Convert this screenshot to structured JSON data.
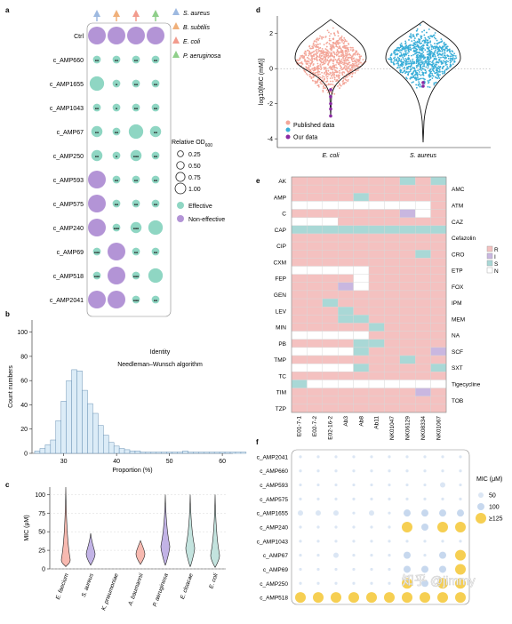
{
  "panel_labels": {
    "a": "a",
    "b": "b",
    "c": "c",
    "d": "d",
    "e": "e",
    "f": "f"
  },
  "colors": {
    "effective": "#8fd6c3",
    "noneffective": "#b394d6",
    "published": "#f3a699",
    "our": "#8b2aa3",
    "saureus": "#3aaed8",
    "R": "#f4c1c0",
    "I": "#c9b7e0",
    "S": "#a9d8d6",
    "N": "#ffffff",
    "mic50": "#dbe6f4",
    "mic100": "#c7d8ee",
    "mic125": "#f6cf52",
    "hist": "#dcecf7",
    "hist_edge": "#6b93b6",
    "tri_saureus": "#9db9e0",
    "tri_bsubtilis": "#f0b07a",
    "tri_ecoli": "#f29b8d",
    "tri_paeruginosa": "#8fcf8a"
  },
  "watermark": "知乎 @jimmy",
  "chart_data": [
    {
      "panel": "a",
      "type": "scatter",
      "rows": [
        "Ctrl",
        "c_AMP660",
        "c_AMP1655",
        "c_AMP1043",
        "c_AMP67",
        "c_AMP250",
        "c_AMP593",
        "c_AMP575",
        "c_AMP240",
        "c_AMP69",
        "c_AMP518",
        "c_AMP2041"
      ],
      "columns": [
        "S. aureus",
        "B. subtilis",
        "E. coli",
        "P. aeruginosa"
      ],
      "od": [
        [
          1,
          1,
          1,
          1
        ],
        [
          0.25,
          0.25,
          0.25,
          0.25
        ],
        [
          0.75,
          0.25,
          0.25,
          0.25
        ],
        [
          0.25,
          0.25,
          0.25,
          0.25
        ],
        [
          0.5,
          0.25,
          0.75,
          0.5
        ],
        [
          0.5,
          0.25,
          0.5,
          0.25
        ],
        [
          1,
          0.25,
          0.25,
          0.25
        ],
        [
          1,
          0.25,
          0.25,
          0.25
        ],
        [
          1,
          0.25,
          0.5,
          0.75
        ],
        [
          0.25,
          1,
          0.25,
          0.25
        ],
        [
          0.25,
          1,
          0.25,
          0.75
        ],
        [
          1,
          1,
          0.25,
          0.25
        ]
      ],
      "effect": [
        [
          "N",
          "N",
          "N",
          "N"
        ],
        [
          "E",
          "E",
          "E",
          "E"
        ],
        [
          "E",
          "E",
          "E",
          "E"
        ],
        [
          "E",
          "E",
          "E",
          "E"
        ],
        [
          "E",
          "E",
          "E",
          "E"
        ],
        [
          "E",
          "E",
          "E",
          "E"
        ],
        [
          "N",
          "E",
          "E",
          "E"
        ],
        [
          "N",
          "E",
          "E",
          "E"
        ],
        [
          "N",
          "E",
          "E",
          "E"
        ],
        [
          "E",
          "N",
          "E",
          "E"
        ],
        [
          "E",
          "N",
          "E",
          "E"
        ],
        [
          "N",
          "N",
          "E",
          "E"
        ]
      ],
      "stars": [
        [
          "",
          "",
          "",
          ""
        ],
        [
          "**",
          "**",
          "**",
          "**"
        ],
        [
          "",
          "*",
          "**",
          "**"
        ],
        [
          "**",
          "*",
          "**",
          "**"
        ],
        [
          "**",
          "**",
          "",
          "**"
        ],
        [
          "**",
          "*",
          "***",
          "**"
        ],
        [
          "",
          "**",
          "**",
          "**"
        ],
        [
          "",
          "**",
          "**",
          "**"
        ],
        [
          "",
          "***",
          "***",
          ""
        ],
        [
          "***",
          "",
          "**",
          "**"
        ],
        [
          "***",
          "",
          "***",
          ""
        ],
        [
          "",
          "",
          "***",
          "**"
        ]
      ],
      "legend_title": "Relative OD",
      "legend_title_sub": "600",
      "legend_sizes": [
        "0.25",
        "0.50",
        "0.75",
        "1.00"
      ],
      "legend_effect": [
        "Effective",
        "Non-effective"
      ]
    },
    {
      "panel": "b",
      "type": "bar",
      "xlabel": "Proportion (%)",
      "ylabel": "Count numbers",
      "bin_start": 24.5,
      "bin_width": 1,
      "values": [
        2,
        4,
        7,
        11,
        27,
        43,
        60,
        69,
        68,
        52,
        41,
        33,
        23,
        15,
        9,
        6,
        4,
        3,
        2,
        2,
        1,
        1,
        1,
        1,
        1,
        1,
        1,
        1,
        2,
        1,
        1,
        1,
        1,
        1,
        1,
        1,
        1,
        1,
        1,
        1
      ],
      "x_ticks": [
        "30",
        "40",
        "50",
        "60"
      ],
      "y_ticks": [
        "0",
        "20",
        "40",
        "60",
        "80",
        "100"
      ],
      "xlim": [
        24,
        62
      ],
      "ylim": [
        0,
        110
      ],
      "annotations": [
        "Identity",
        "Needleman–Wunsch algorithm"
      ]
    },
    {
      "panel": "c",
      "type": "violin",
      "ylabel": "MIC (μM)",
      "categories": [
        "E. faecium",
        "S. aureus",
        "K. pneumoniae",
        "A. baumannii",
        "P. aeruginosa",
        "E. cloacae",
        "E. coli"
      ],
      "ranges": [
        [
          3,
          110
        ],
        [
          5,
          48
        ],
        [
          0,
          0
        ],
        [
          6,
          38
        ],
        [
          5,
          100
        ],
        [
          3,
          100
        ],
        [
          2,
          100
        ]
      ],
      "medians": [
        12,
        20,
        0,
        20,
        30,
        28,
        18
      ],
      "y_ticks": [
        "0",
        "25",
        "50",
        "75",
        "100"
      ],
      "ylim": [
        0,
        110
      ]
    },
    {
      "panel": "d",
      "type": "violin",
      "ylabel": "log10[MIC (mM)]",
      "categories": [
        "E. coli",
        "S. aureus"
      ],
      "y_ticks": [
        "2",
        "0",
        "-2",
        "-4"
      ],
      "ylim": [
        -4.5,
        3
      ],
      "legend": [
        "Published data",
        "Our data"
      ]
    },
    {
      "panel": "e",
      "type": "heatmap",
      "rows": [
        "AK",
        "AMC",
        "AMP",
        "ATM",
        "C",
        "CAZ",
        "CAP",
        "Cefazolin",
        "CIP",
        "CRO",
        "CXM",
        "ETP",
        "FEP",
        "FOX",
        "GEN",
        "IPM",
        "LEV",
        "MEM",
        "MIN",
        "NA",
        "PB",
        "SCF",
        "TMP",
        "SXT",
        "TC",
        "Tigecycline",
        "TIM",
        "TOB",
        "TZP"
      ],
      "columns": [
        "E01-7-1",
        "E02-7-2",
        "E02-16-2",
        "Ab3",
        "Ab8",
        "Ab11",
        "NK01047",
        "NK06129",
        "NK08334",
        "NK01067"
      ],
      "legend": [
        "R",
        "I",
        "S",
        "N"
      ],
      "cells": [
        "RRRRRRRSRS",
        "RRRRRRRRRR",
        "RRRRSRRRRR",
        "NNNNNNNNNR",
        "RRRRRRRINR",
        "NNNRRRRRRR",
        "SSSSSSSSSS",
        "RRRRRRRRRR",
        "RRRRRRRRRR",
        "RRRRRRRRSR",
        "RRRRRRRRRR",
        "NNNNNRRRRR",
        "RRRRNRRRRR",
        "RRRINRRRRR",
        "RRRRRRRRRR",
        "RRSRRRRRRR",
        "RRRSRRRRRR",
        "RRRSSRRRRR",
        "RRRRRSRRRR",
        "NNNNNRRRRR",
        "RRRRSSRRRR",
        "NNNNSRRRRI",
        "RRRRRRRSRR",
        "NNNNSRRRRS",
        "RRRRRRRRRR",
        "SNNNNNNNNN",
        "RRRRRRRRIR",
        "RRRRRRRRRR",
        "RRRRRRRRRR"
      ]
    },
    {
      "panel": "f",
      "type": "scatter",
      "ylabel": "MIC (μM)",
      "rows": [
        "c_AMP2041",
        "c_AMP660",
        "c_AMP593",
        "c_AMP575",
        "c_AMP1655",
        "c_AMP240",
        "c_AMP1043",
        "c_AMP67",
        "c_AMP69",
        "c_AMP250",
        "c_AMP518"
      ],
      "columns": [
        "E01-7-1",
        "E02-7-2",
        "E02-16-2",
        "Ab3",
        "Ab8",
        "Ab11",
        "NK01047",
        "NK06129",
        "NK08334",
        "NK01067"
      ],
      "values": [
        [
          12,
          12,
          12,
          12,
          12,
          12,
          12,
          12,
          12,
          12
        ],
        [
          12,
          12,
          12,
          12,
          12,
          12,
          12,
          12,
          12,
          12
        ],
        [
          12,
          12,
          12,
          12,
          12,
          12,
          12,
          12,
          50,
          12
        ],
        [
          12,
          12,
          12,
          12,
          12,
          12,
          12,
          12,
          12,
          12
        ],
        [
          50,
          50,
          50,
          12,
          50,
          12,
          100,
          100,
          100,
          100
        ],
        [
          12,
          12,
          12,
          12,
          12,
          12,
          125,
          100,
          125,
          125
        ],
        [
          12,
          12,
          12,
          12,
          12,
          12,
          12,
          12,
          12,
          12
        ],
        [
          12,
          12,
          50,
          12,
          12,
          12,
          100,
          12,
          100,
          125
        ],
        [
          12,
          12,
          12,
          12,
          12,
          12,
          100,
          100,
          100,
          125
        ],
        [
          12,
          12,
          12,
          12,
          12,
          12,
          125,
          100,
          125,
          125
        ],
        [
          125,
          125,
          125,
          125,
          125,
          125,
          125,
          125,
          125,
          125
        ]
      ],
      "legend": [
        "50",
        "100",
        "≥125"
      ]
    }
  ]
}
